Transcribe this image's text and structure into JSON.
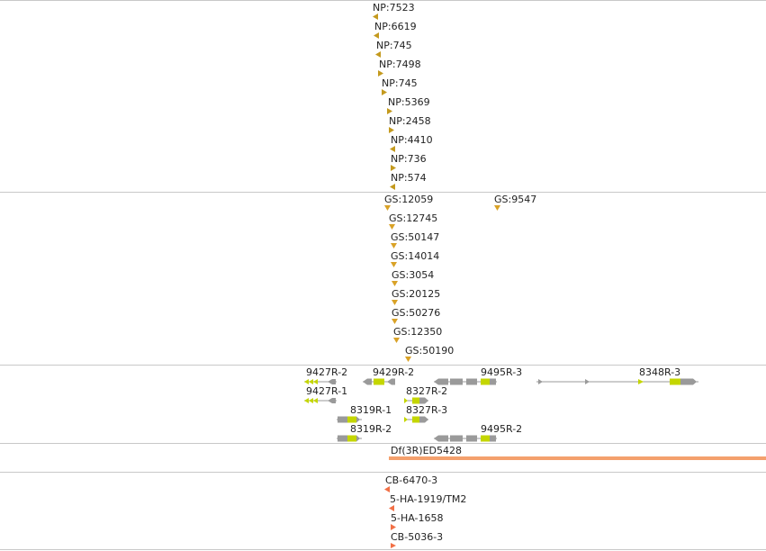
{
  "colors": {
    "np_marker": "#c49a1e",
    "gs_marker": "#d9a227",
    "exon_gray": "#9a9a9a",
    "exon_lime": "#c4d600",
    "deficiency_bar": "#f4a06d",
    "cb_marker": "#f27046",
    "separator": "#c8c8c8"
  },
  "np_track": {
    "items": [
      {
        "label": "NP:7523",
        "dir": "left"
      },
      {
        "label": "NP:6619",
        "dir": "left"
      },
      {
        "label": "NP:745",
        "dir": "left"
      },
      {
        "label": "NP:7498",
        "dir": "right"
      },
      {
        "label": "NP:745",
        "dir": "right"
      },
      {
        "label": "NP:5369",
        "dir": "right"
      },
      {
        "label": "NP:2458",
        "dir": "right"
      },
      {
        "label": "NP:4410",
        "dir": "left"
      },
      {
        "label": "NP:736",
        "dir": "right"
      },
      {
        "label": "NP:574",
        "dir": "left"
      }
    ]
  },
  "gs_track": {
    "items": [
      {
        "label": "GS:12059"
      },
      {
        "label": "GS:9547"
      },
      {
        "label": "GS:12745"
      },
      {
        "label": "GS:50147"
      },
      {
        "label": "GS:14014"
      },
      {
        "label": "GS:3054"
      },
      {
        "label": "GS:20125"
      },
      {
        "label": "GS:50276"
      },
      {
        "label": "GS:12350"
      },
      {
        "label": "GS:50190"
      }
    ]
  },
  "gene_track": {
    "transcripts": [
      {
        "label": "9427R-2"
      },
      {
        "label": "9429R-2"
      },
      {
        "label": "9495R-3"
      },
      {
        "label": "8348R-3"
      },
      {
        "label": "9427R-1"
      },
      {
        "label": "8327R-2"
      },
      {
        "label": "8319R-1"
      },
      {
        "label": "8327R-3"
      },
      {
        "label": "8319R-2"
      },
      {
        "label": "9495R-2"
      }
    ]
  },
  "deficiency_track": {
    "label": "Df(3R)ED5428"
  },
  "cb_track": {
    "items": [
      {
        "label": "CB-6470-3",
        "dir": "left"
      },
      {
        "label": "5-HA-1919/TM2",
        "dir": "left"
      },
      {
        "label": "5-HA-1658",
        "dir": "right"
      },
      {
        "label": "CB-5036-3",
        "dir": "right"
      }
    ]
  }
}
